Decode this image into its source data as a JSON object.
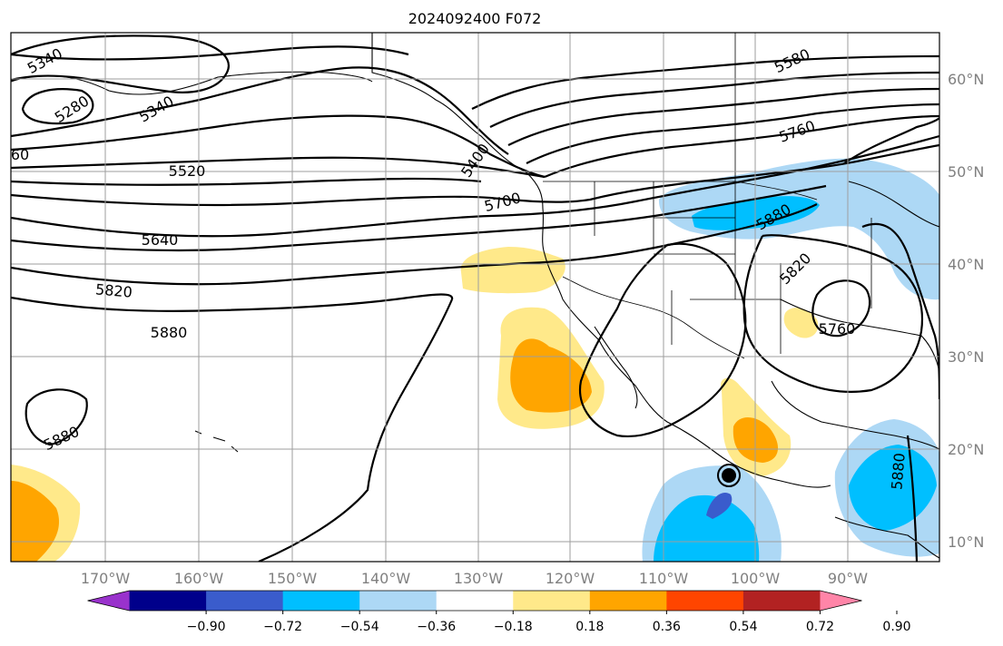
{
  "title": "2024092400 F072",
  "lon_ticks": [
    "170°W",
    "160°W",
    "150°W",
    "140°W",
    "130°W",
    "120°W",
    "110°W",
    "100°W",
    "90°W"
  ],
  "lat_ticks": [
    "60°N",
    "50°N",
    "40°N",
    "30°N",
    "20°N",
    "10°N"
  ],
  "contour_labels": [
    "5340",
    "5280",
    "5340",
    "60",
    "5520",
    "5400",
    "5700",
    "5640",
    "5820",
    "5880",
    "5580",
    "5760",
    "5880",
    "5820",
    "5760",
    "5880",
    "5880"
  ],
  "colorbar": {
    "ticks": [
      "−0.90",
      "−0.72",
      "−0.54",
      "−0.36",
      "−0.18",
      "0.18",
      "0.36",
      "0.54",
      "0.72",
      "0.90"
    ],
    "colors": [
      "#9932cc",
      "#00008b",
      "#3a5ccc",
      "#00bfff",
      "#add8f5",
      "#ffffff",
      "#ffe98a",
      "#ffa500",
      "#ff4500",
      "#b22222",
      "#ff85a8"
    ]
  }
}
